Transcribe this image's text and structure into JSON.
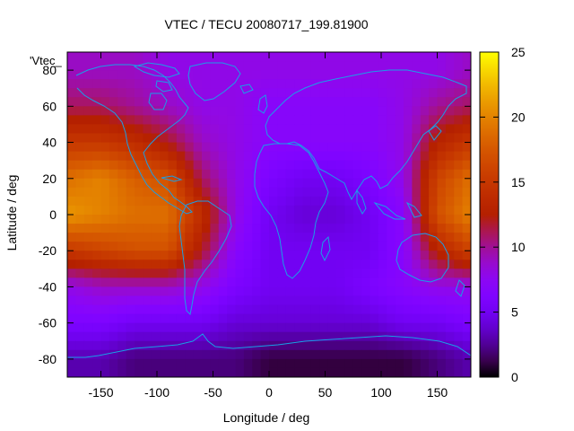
{
  "chart_data": {
    "type": "heatmap",
    "title": "VTEC / TECU 20080717_199.81900",
    "xlabel": "Longitude / deg",
    "ylabel": "Latitude / deg",
    "key_label": "'Vtec_",
    "xlim": [
      -180,
      180
    ],
    "ylim": [
      -90,
      90
    ],
    "xticks": [
      -150,
      -100,
      -50,
      0,
      50,
      100,
      150
    ],
    "yticks": [
      -80,
      -60,
      -40,
      -20,
      0,
      20,
      40,
      60,
      80
    ],
    "colorbar": {
      "min": 0,
      "max": 25,
      "ticks": [
        0,
        5,
        10,
        15,
        20,
        25
      ]
    },
    "value_grid": {
      "lats": [
        80,
        60,
        40,
        20,
        0,
        -20,
        -40,
        -60,
        -80
      ],
      "lons": [
        -180,
        -150,
        -120,
        -90,
        -60,
        -30,
        0,
        30,
        60,
        90,
        120,
        150,
        180
      ],
      "values": [
        [
          9,
          9,
          9,
          8,
          8,
          8,
          8,
          8,
          8,
          8,
          8,
          8,
          9
        ],
        [
          11,
          11,
          10,
          9,
          8,
          8,
          7,
          7,
          7,
          7,
          8,
          10,
          11
        ],
        [
          15,
          15,
          14,
          12,
          9,
          8,
          7,
          7,
          7,
          7,
          8,
          13,
          15
        ],
        [
          19,
          20,
          18,
          17,
          11,
          8,
          6,
          5,
          5,
          6,
          8,
          16,
          19
        ],
        [
          21,
          20,
          19,
          19,
          14,
          8,
          5,
          4,
          4,
          5,
          7,
          17,
          20
        ],
        [
          15,
          16,
          17,
          17,
          12,
          7,
          5,
          5,
          5,
          5,
          7,
          13,
          16
        ],
        [
          8,
          9,
          9,
          9,
          8,
          6,
          5,
          5,
          5,
          6,
          7,
          8,
          8
        ],
        [
          6,
          6,
          5,
          5,
          5,
          4,
          4,
          4,
          4,
          4,
          5,
          5,
          6
        ],
        [
          3,
          3,
          2,
          2,
          2,
          2,
          1,
          1,
          1,
          1,
          1,
          2,
          3
        ]
      ]
    }
  },
  "colors": {
    "coastline": "#1a9fe6",
    "palette": "gnuplot-pm3d",
    "background": "#ffffff"
  }
}
